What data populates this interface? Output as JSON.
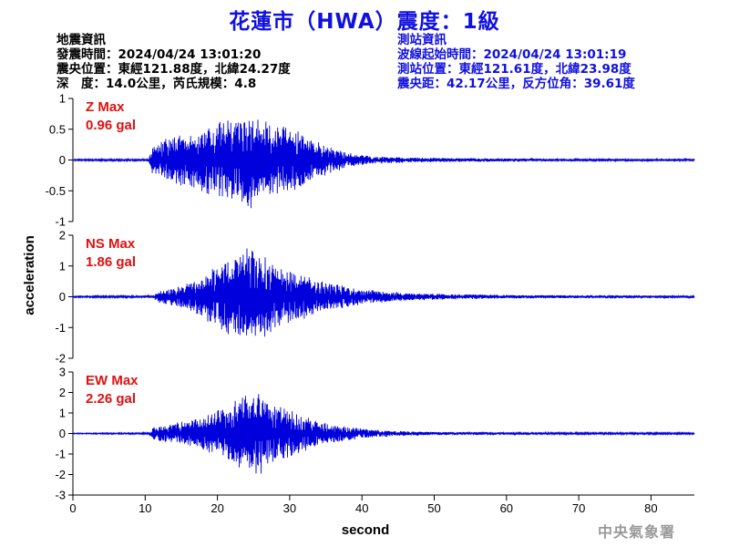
{
  "title": "花蓮市（HWA）震度：1級",
  "earthquake_info": {
    "header": "地震資訊",
    "origin_time": "發震時間：2024/04/24 13:01:20",
    "epicenter": "震央位置：東經121.88度，北緯24.27度",
    "depth_magnitude": "深　度：14.0公里，芮氏規模：4.8"
  },
  "station_info": {
    "header": "測站資訊",
    "wave_start": "波線起始時間：2024/04/24 13:01:19",
    "station_location": "測站位置：東經121.61度，北緯23.98度",
    "distance_azimuth": "震央距：42.17公里，反方位角：39.61度"
  },
  "agency": "中央氣象署",
  "colors": {
    "title": "#1010e0",
    "trace": "#0000dd",
    "label": "#e01010",
    "station_text": "#1010e0"
  },
  "chart_data": {
    "type": "line",
    "xlabel": "second",
    "ylabel": "acceleration",
    "xlim": [
      0,
      86
    ],
    "xticks": [
      0,
      10,
      20,
      30,
      40,
      50,
      60,
      70,
      80
    ],
    "shared_x": true,
    "panels": [
      {
        "name": "Z Max",
        "max_text": "0.96 gal",
        "ylim": [
          -1,
          1
        ],
        "yticks": [
          -1,
          -0.5,
          0,
          0.5,
          1
        ],
        "envelope": {
          "x": [
            0,
            10.5,
            11,
            13,
            17,
            20,
            23,
            25,
            27,
            30,
            34,
            38,
            42,
            47,
            55,
            65,
            75,
            86
          ],
          "amplitude": [
            0.01,
            0.02,
            0.25,
            0.35,
            0.5,
            0.6,
            0.75,
            0.8,
            0.6,
            0.55,
            0.3,
            0.12,
            0.06,
            0.04,
            0.03,
            0.02,
            0.02,
            0.02
          ]
        }
      },
      {
        "name": "NS Max",
        "max_text": "1.86 gal",
        "ylim": [
          -2,
          2
        ],
        "yticks": [
          -2,
          -1,
          0,
          1,
          2
        ],
        "envelope": {
          "x": [
            0,
            11,
            12,
            15,
            18,
            21,
            24,
            26,
            28,
            31,
            35,
            40,
            45,
            50,
            60,
            70,
            86
          ],
          "amplitude": [
            0.02,
            0.04,
            0.2,
            0.35,
            0.7,
            1.2,
            1.6,
            1.4,
            1.1,
            0.8,
            0.5,
            0.25,
            0.15,
            0.1,
            0.06,
            0.05,
            0.04
          ]
        }
      },
      {
        "name": "EW Max",
        "max_text": "2.26 gal",
        "ylim": [
          -3,
          3
        ],
        "yticks": [
          -3,
          -2,
          -1,
          0,
          1,
          2,
          3
        ],
        "envelope": {
          "x": [
            0,
            10.5,
            11,
            14,
            18,
            21,
            24,
            26,
            28,
            31,
            35,
            40,
            45,
            50,
            60,
            70,
            86
          ],
          "amplitude": [
            0.02,
            0.04,
            0.3,
            0.5,
            0.8,
            1.3,
            1.9,
            2.0,
            1.4,
            1.0,
            0.5,
            0.25,
            0.12,
            0.08,
            0.06,
            0.05,
            0.04
          ]
        }
      }
    ]
  }
}
